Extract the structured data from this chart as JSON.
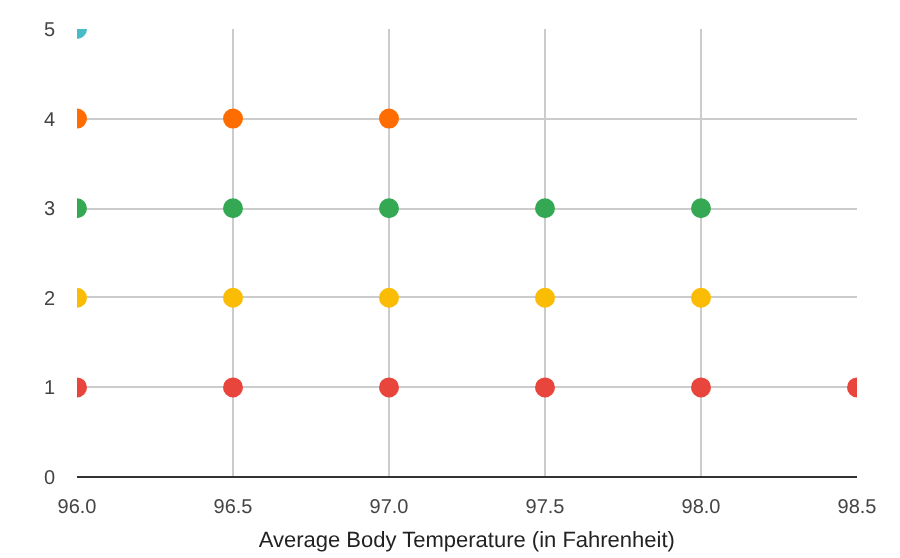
{
  "chart_data": {
    "type": "scatter",
    "xlabel": "Average Body Temperature (in Fahrenheit)",
    "xlim": [
      96.0,
      98.5
    ],
    "ylim": [
      0,
      5
    ],
    "xticks": [
      {
        "value": 96.0,
        "label": "96.0"
      },
      {
        "value": 96.5,
        "label": "96.5"
      },
      {
        "value": 97.0,
        "label": "97.0"
      },
      {
        "value": 97.5,
        "label": "97.5"
      },
      {
        "value": 98.0,
        "label": "98.0"
      },
      {
        "value": 98.5,
        "label": "98.5"
      }
    ],
    "yticks": [
      0,
      1,
      2,
      3,
      4,
      5
    ],
    "grid": true,
    "marker": "circle",
    "series": [
      {
        "color": "#e8453c",
        "x": [
          96.0,
          96.5,
          97.0,
          97.5,
          98.0,
          98.5
        ],
        "values": [
          1,
          1,
          1,
          1,
          1,
          1
        ]
      },
      {
        "color": "#fbbc05",
        "x": [
          96.0,
          96.5,
          97.0,
          97.5,
          98.0
        ],
        "values": [
          2,
          2,
          2,
          2,
          2
        ]
      },
      {
        "color": "#34a853",
        "x": [
          96.0,
          96.5,
          97.0,
          97.5,
          98.0
        ],
        "values": [
          3,
          3,
          3,
          3,
          3
        ]
      },
      {
        "color": "#ff6d01",
        "x": [
          96.0,
          96.5,
          97.0
        ],
        "values": [
          4,
          4,
          4
        ]
      },
      {
        "color": "#46bdc6",
        "x": [
          96.0
        ],
        "values": [
          5
        ]
      }
    ]
  }
}
